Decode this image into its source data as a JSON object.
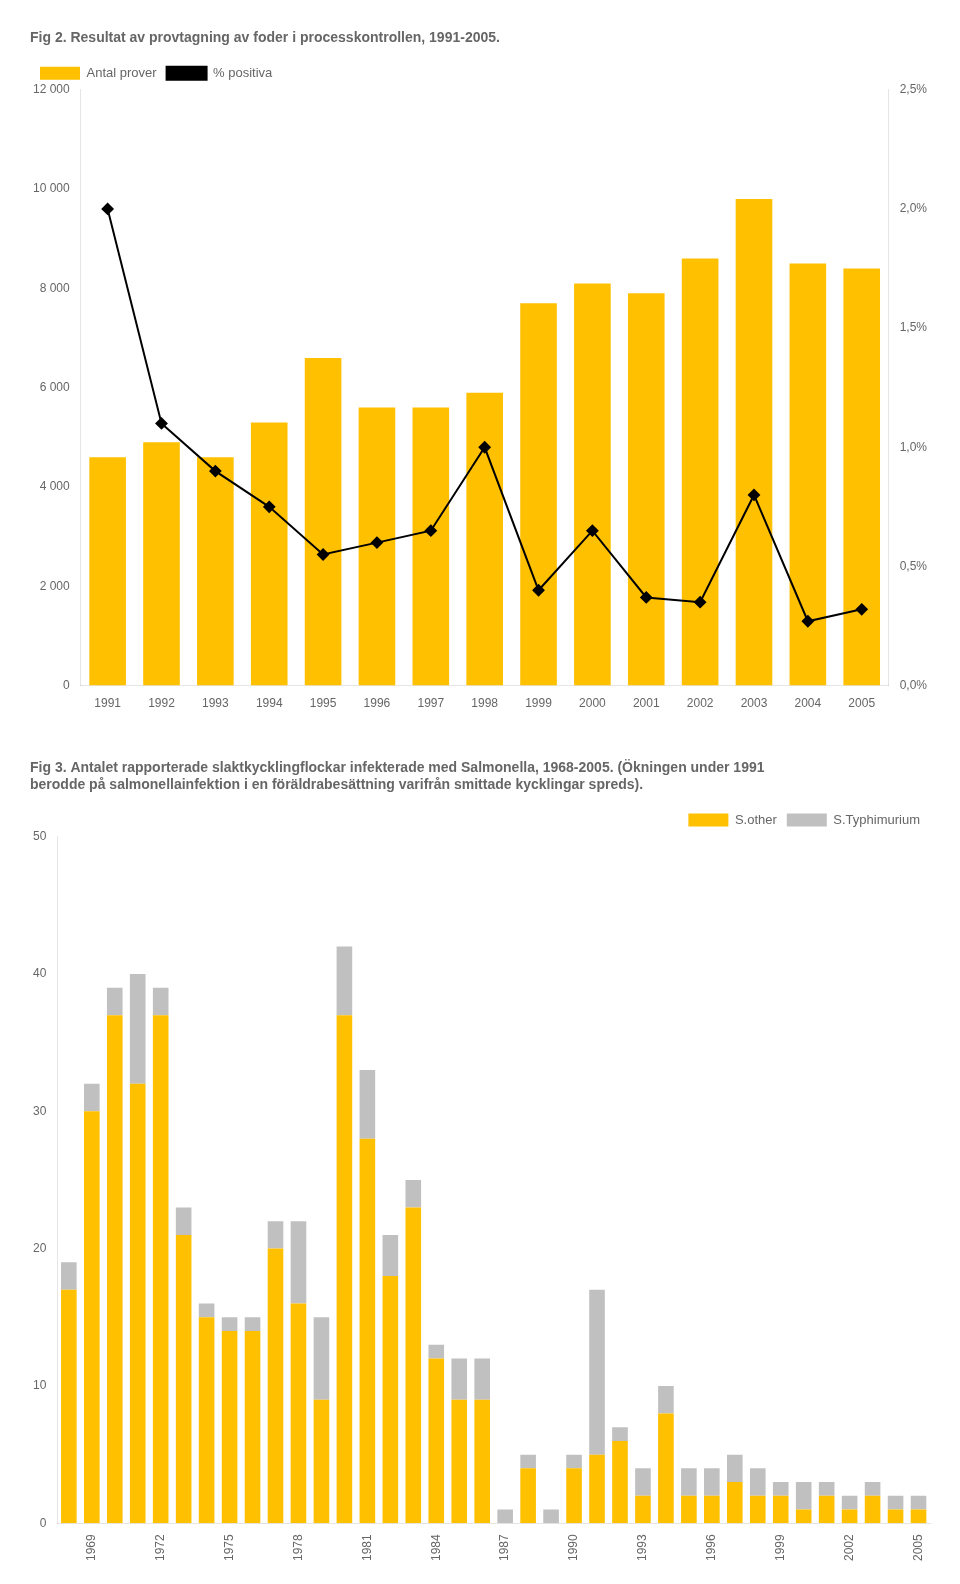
{
  "chart_data": [
    {
      "type": "bar",
      "title": "Fig 2. Resultat av provtagning av foder i processkontrollen, 1991-2005.",
      "categories": [
        "1991",
        "1992",
        "1993",
        "1994",
        "1995",
        "1996",
        "1997",
        "1998",
        "1999",
        "2000",
        "2001",
        "2002",
        "2003",
        "2004",
        "2005"
      ],
      "series": [
        {
          "name": "Antal prover",
          "type": "bar",
          "color": "#FFC000",
          "values": [
            4600,
            4900,
            4600,
            5300,
            6600,
            5600,
            5600,
            5900,
            7700,
            8100,
            7900,
            8600,
            9800,
            8500,
            8400
          ]
        },
        {
          "name": "% positiva",
          "type": "line",
          "color": "#000000",
          "marker": "diamond",
          "axis": "y2",
          "values": [
            2.0,
            1.1,
            0.9,
            0.75,
            0.55,
            0.6,
            0.65,
            1.0,
            0.4,
            0.65,
            0.37,
            0.35,
            0.8,
            0.27,
            0.32
          ]
        }
      ],
      "ylim": [
        0,
        12000
      ],
      "yticks": [
        0,
        {
          "value": 2000,
          "label": "2 000"
        },
        {
          "value": 4000,
          "label": "4 000"
        },
        {
          "value": 6000,
          "label": "6 000"
        },
        {
          "value": 8000,
          "label": "8 000"
        },
        {
          "value": 10000,
          "label": "10 000"
        },
        {
          "value": 12000,
          "label": "12 000"
        }
      ],
      "y2lim": [
        0.0,
        2.5
      ],
      "y2ticks": [
        {
          "value": 0.0,
          "label": "0,0%"
        },
        {
          "value": 0.5,
          "label": "0,5%"
        },
        {
          "value": 1.0,
          "label": "1,0%"
        },
        {
          "value": 1.5,
          "label": "1,5%"
        },
        {
          "value": 2.0,
          "label": "2,0%"
        },
        {
          "value": 2.5,
          "label": "2,5%"
        }
      ],
      "legend": "upper left",
      "grid": false
    },
    {
      "type": "bar",
      "stacked": true,
      "title": [
        "Fig 3. Antalet rapporterade slaktkycklingflockar infekterade med Salmonella, 1968-2005. (Ökningen under 1991",
        "berodde på salmonellainfektion i en föräldrabesättning varifrån smittade kycklingar spreds)."
      ],
      "categories": [
        null,
        "1969",
        null,
        null,
        "1972",
        null,
        null,
        "1975",
        null,
        null,
        "1978",
        null,
        null,
        "1981",
        null,
        null,
        "1984",
        null,
        null,
        "1987",
        null,
        null,
        "1990",
        null,
        null,
        "1993",
        null,
        null,
        "1996",
        null,
        null,
        "1999",
        null,
        null,
        "2002",
        null,
        null,
        "2005"
      ],
      "series": [
        {
          "name": "S.other",
          "color": "#FFC000",
          "values": [
            17,
            30,
            37,
            32,
            37,
            21,
            15,
            14,
            14,
            20,
            16,
            9,
            37,
            28,
            18,
            23,
            12,
            9,
            9,
            0,
            4,
            0,
            4,
            5,
            6,
            2,
            8,
            2,
            2,
            3,
            2,
            2,
            1,
            2,
            1,
            2,
            1,
            1
          ]
        },
        {
          "name": "S.Typhimurium",
          "color": "#C0C0C0",
          "values": [
            2,
            2,
            2,
            8,
            2,
            2,
            1,
            1,
            1,
            2,
            6,
            6,
            5,
            5,
            3,
            2,
            1,
            3,
            3,
            1,
            1,
            1,
            1,
            12,
            1,
            2,
            2,
            2,
            2,
            2,
            2,
            1,
            2,
            1,
            1,
            1,
            1,
            1
          ]
        }
      ],
      "ylim": [
        0,
        50
      ],
      "yticks": [
        0,
        10,
        20,
        30,
        40,
        50
      ],
      "legend": "upper right",
      "grid": false
    }
  ]
}
